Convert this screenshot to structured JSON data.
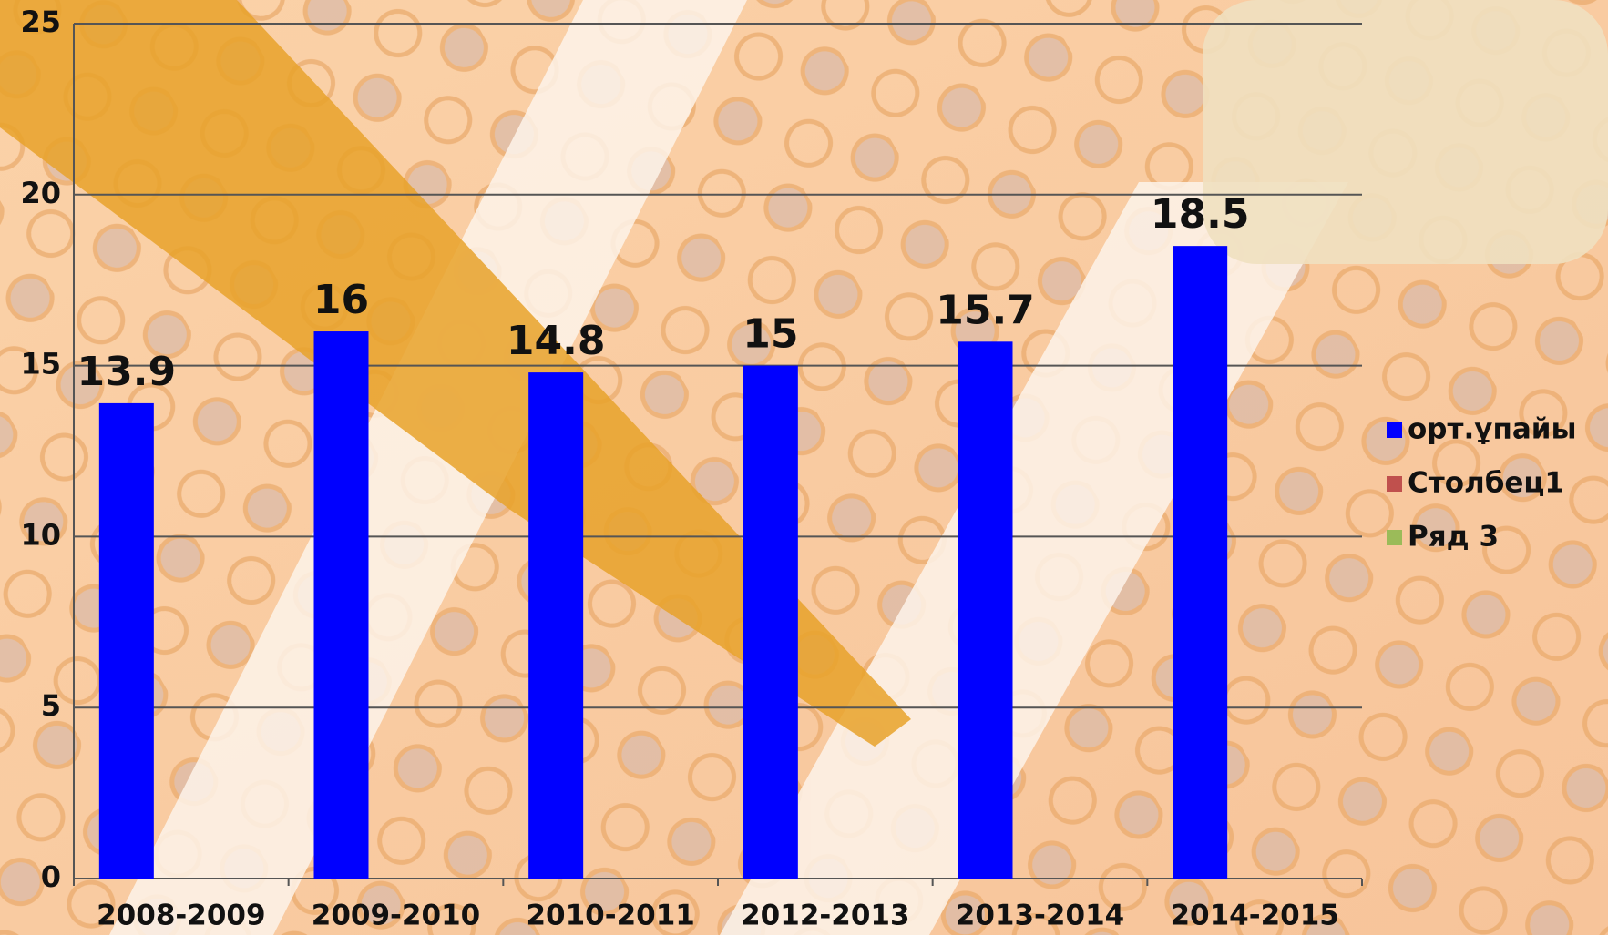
{
  "chart_data": {
    "type": "bar",
    "categories": [
      "2008-2009",
      "2009-2010",
      "2010-2011",
      "2012-2013",
      "2013-2014",
      "2014-2015"
    ],
    "series": [
      {
        "name": "орт.ұпайы",
        "color": "#0000ff",
        "values": [
          13.9,
          16,
          14.8,
          15,
          15.7,
          18.5
        ]
      },
      {
        "name": "Столбец1",
        "color": "#c0504d",
        "values": [
          null,
          null,
          null,
          null,
          null,
          null
        ]
      },
      {
        "name": "Ряд 3",
        "color": "#9bbb59",
        "values": [
          null,
          null,
          null,
          null,
          null,
          null
        ]
      }
    ],
    "ylim": [
      0,
      25
    ],
    "yticks": [
      0,
      5,
      10,
      15,
      20,
      25
    ],
    "grid": true,
    "legend": "right",
    "data_labels": true
  }
}
